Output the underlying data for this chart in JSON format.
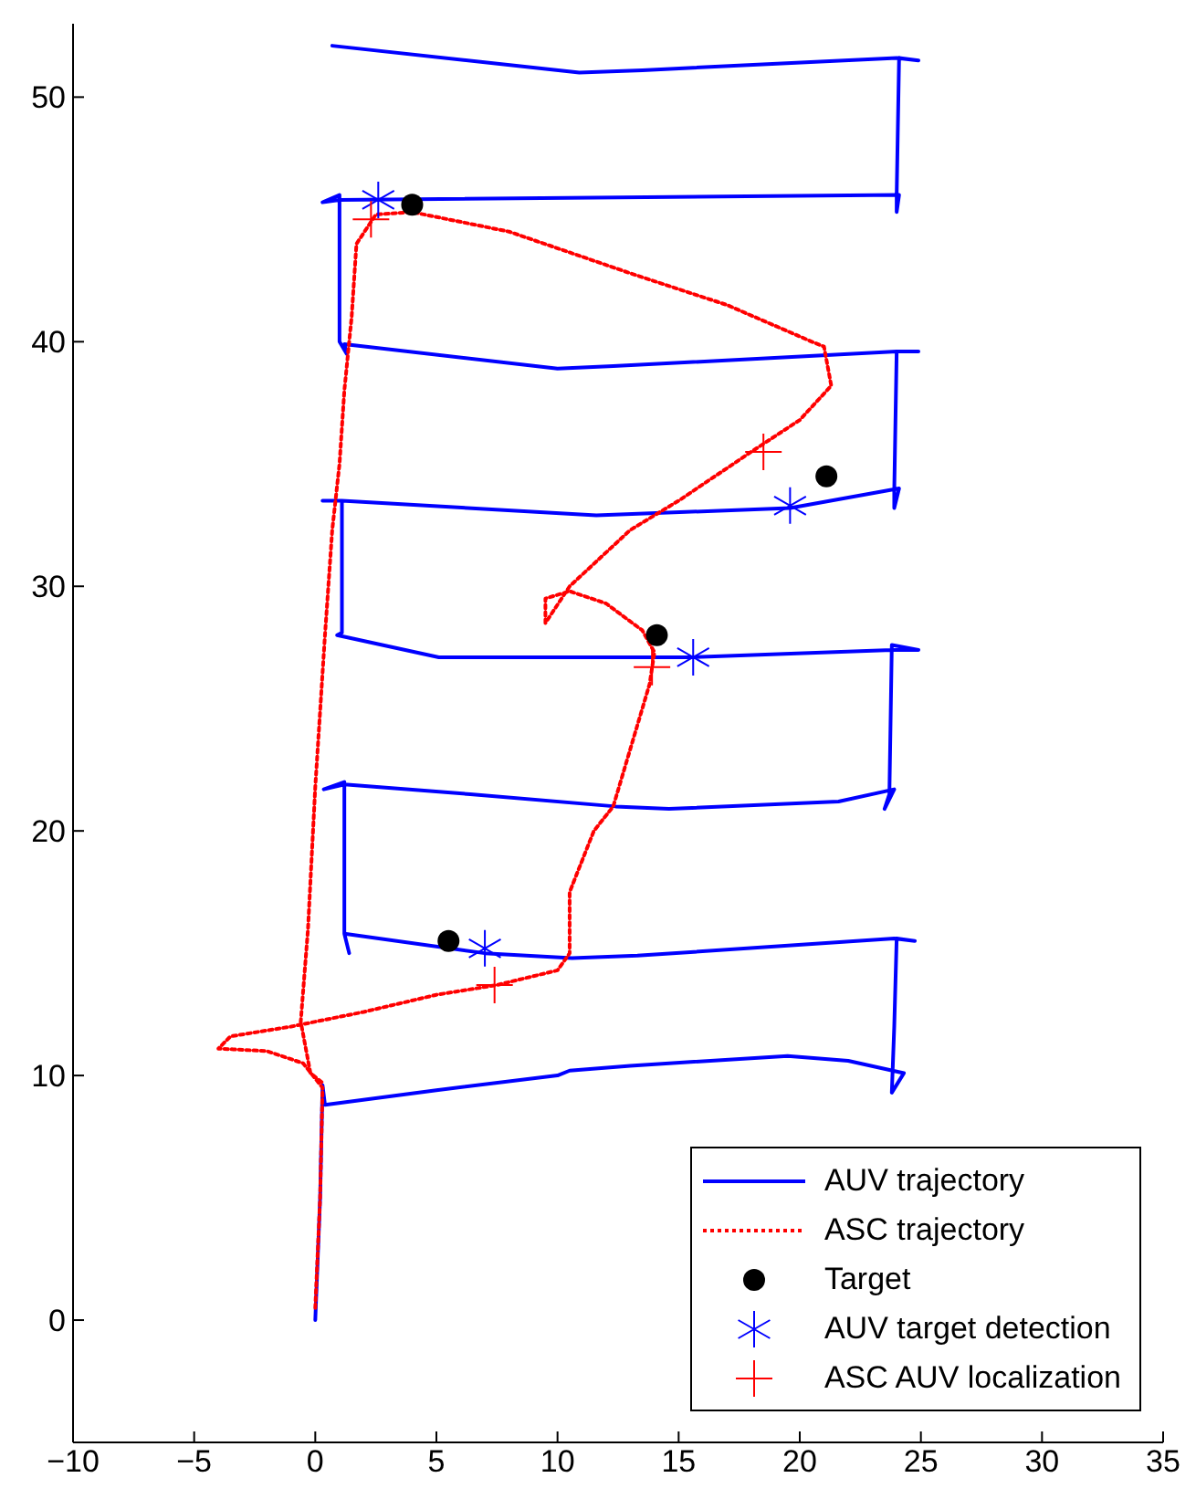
{
  "chart_data": {
    "type": "line",
    "xlim": [
      -10,
      35
    ],
    "ylim": [
      -5,
      53
    ],
    "xticks": [
      -10,
      -5,
      0,
      5,
      10,
      15,
      20,
      25,
      30,
      35
    ],
    "yticks": [
      0,
      10,
      20,
      30,
      40,
      50
    ],
    "legend": "bottom right",
    "series": [
      {
        "name": "AUV trajectory",
        "color": "#0000ff",
        "line_style": "solid",
        "marker": "none",
        "x": [
          0,
          0.2,
          0.3,
          0.4,
          5,
          10,
          10.5,
          13,
          19.5,
          22,
          24.3,
          23.8,
          23.9,
          24.0,
          24.75,
          23.9,
          13.3,
          10.6,
          7.0,
          1.2,
          1.4,
          1.2,
          1.2,
          0.35,
          1.2,
          6.4,
          12.4,
          14.6,
          21.6,
          23.9,
          23.5,
          23.7,
          23.8,
          24.9,
          23.8,
          15.6,
          5.1,
          0.9,
          1.1,
          1.1,
          0.3,
          1.1,
          11.6,
          19.6,
          24.1,
          23.9,
          23.9,
          24.0,
          24.9,
          24.0,
          12.3,
          10.0,
          1.2,
          1.3,
          1.0,
          1.0,
          0.3,
          1.0,
          24.1,
          24.0,
          24.0,
          24.1,
          24.9,
          24.0,
          13.5,
          10.9,
          0.7
        ],
        "values": [
          0,
          5,
          9.6,
          8.8,
          9.4,
          10,
          10.2,
          10.4,
          10.8,
          10.6,
          10.1,
          9.3,
          12,
          15.6,
          15.5,
          15.6,
          14.9,
          14.8,
          15.0,
          15.8,
          15.0,
          15.8,
          22.0,
          21.7,
          21.9,
          21.5,
          21.0,
          20.9,
          21.2,
          21.7,
          20.9,
          21.5,
          27.6,
          27.4,
          27.4,
          27.1,
          27.1,
          28.0,
          28.1,
          33.5,
          33.5,
          33.5,
          32.9,
          33.2,
          34.0,
          33.2,
          33.9,
          39.6,
          39.6,
          39.6,
          39.0,
          38.9,
          39.9,
          39.5,
          40.0,
          46.0,
          45.7,
          45.8,
          46.0,
          45.3,
          46.0,
          51.6,
          51.5,
          51.6,
          51.1,
          51.0,
          52.1
        ]
      },
      {
        "name": "ASC trajectory",
        "color": "#ff0000",
        "line_style": "dotted",
        "marker": "none",
        "x": [
          0,
          0.2,
          0.3,
          -0.5,
          -2,
          -4,
          -3.5,
          -1,
          2,
          5,
          7.5,
          10,
          10.5,
          10.5,
          11.5,
          12.3,
          13.2,
          13.8,
          14,
          13.5,
          12,
          10.5,
          9.5,
          9.5,
          10.5,
          13,
          15,
          18,
          20,
          21.3,
          21,
          20.5,
          17,
          13,
          8,
          4,
          2.5,
          1.7,
          1.5,
          1.2,
          1,
          0.7,
          0.4,
          0,
          -0.3,
          -0.6,
          -0.2,
          0.3
        ],
        "values": [
          0.5,
          5,
          9.5,
          10.5,
          11,
          11.1,
          11.6,
          12,
          12.6,
          13.3,
          13.7,
          14.3,
          15,
          17.5,
          20,
          21,
          24,
          26,
          27.3,
          28.2,
          29.3,
          29.8,
          29.5,
          28.5,
          30,
          32.3,
          33.5,
          35.5,
          36.8,
          38.2,
          39.8,
          40,
          41.5,
          42.8,
          44.5,
          45.3,
          45.2,
          44,
          41,
          38,
          35,
          32.3,
          28,
          21.8,
          16,
          12.2,
          10.1,
          9.7
        ]
      },
      {
        "name": "Target",
        "type": "scatter",
        "color": "#000000",
        "marker": "circle",
        "x": [
          4.0,
          21.1,
          14.1,
          5.5
        ],
        "values": [
          45.6,
          34.5,
          28.0,
          15.5
        ]
      },
      {
        "name": "AUV target detection",
        "type": "scatter",
        "color": "#0000ff",
        "marker": "cross",
        "x": [
          2.6,
          19.6,
          15.6,
          7.0
        ],
        "values": [
          45.8,
          33.3,
          27.1,
          15.2
        ]
      },
      {
        "name": "ASC AUV localization",
        "type": "scatter",
        "color": "#ff0000",
        "marker": "cross",
        "x": [
          2.3,
          18.5,
          13.9,
          7.4
        ],
        "values": [
          45.0,
          35.5,
          26.7,
          13.7
        ]
      }
    ]
  }
}
